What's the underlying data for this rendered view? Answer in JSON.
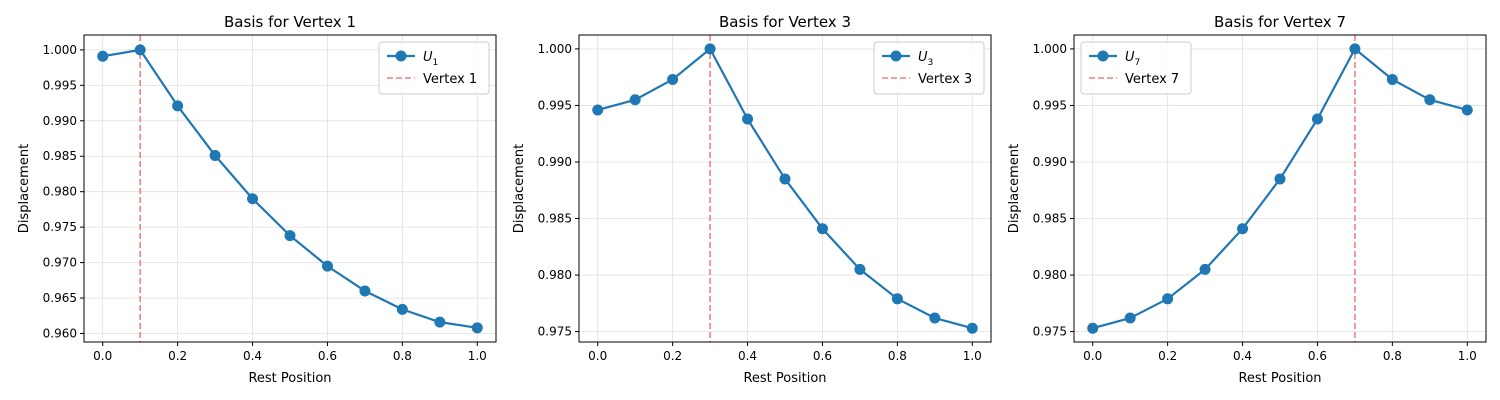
{
  "colors": {
    "line": "#1f77b4",
    "vline": "#f08080",
    "grid": "#e0e0e0",
    "spine": "#000000"
  },
  "chart_data": [
    {
      "type": "line",
      "title": "Basis for Vertex 1",
      "xlabel": "Rest Position",
      "ylabel": "Displacement",
      "x": [
        0.0,
        0.1,
        0.2,
        0.3,
        0.4,
        0.5,
        0.6,
        0.7,
        0.8,
        0.9,
        1.0
      ],
      "series": [
        {
          "name": "U",
          "subscript": "1",
          "values": [
            0.9991,
            1.0,
            0.9921,
            0.9851,
            0.979,
            0.9738,
            0.9695,
            0.966,
            0.9634,
            0.9616,
            0.9608
          ]
        }
      ],
      "vline": {
        "x": 0.1,
        "label": "Vertex 1"
      },
      "xlim": [
        -0.05,
        1.05
      ],
      "ylim": [
        0.9588,
        1.0021
      ],
      "xticks": [
        0.0,
        0.2,
        0.4,
        0.6,
        0.8,
        1.0
      ],
      "xtick_labels": [
        "0.0",
        "0.2",
        "0.4",
        "0.6",
        "0.8",
        "1.0"
      ],
      "yticks": [
        0.96,
        0.965,
        0.97,
        0.975,
        0.98,
        0.985,
        0.99,
        0.995,
        1.0
      ],
      "ytick_labels": [
        "0.960",
        "0.965",
        "0.970",
        "0.975",
        "0.980",
        "0.985",
        "0.990",
        "0.995",
        "1.000"
      ],
      "grid": true,
      "legend": "top-right"
    },
    {
      "type": "line",
      "title": "Basis for Vertex 3",
      "xlabel": "Rest Position",
      "ylabel": "Displacement",
      "x": [
        0.0,
        0.1,
        0.2,
        0.3,
        0.4,
        0.5,
        0.6,
        0.7,
        0.8,
        0.9,
        1.0
      ],
      "series": [
        {
          "name": "U",
          "subscript": "3",
          "values": [
            0.9946,
            0.9955,
            0.9973,
            1.0,
            0.9938,
            0.9885,
            0.9841,
            0.9805,
            0.9779,
            0.9762,
            0.9753
          ]
        }
      ],
      "vline": {
        "x": 0.3,
        "label": "Vertex 3"
      },
      "xlim": [
        -0.05,
        1.05
      ],
      "ylim": [
        0.97408,
        1.00123
      ],
      "xticks": [
        0.0,
        0.2,
        0.4,
        0.6,
        0.8,
        1.0
      ],
      "xtick_labels": [
        "0.0",
        "0.2",
        "0.4",
        "0.6",
        "0.8",
        "1.0"
      ],
      "yticks": [
        0.975,
        0.98,
        0.985,
        0.99,
        0.995,
        1.0
      ],
      "ytick_labels": [
        "0.975",
        "0.980",
        "0.985",
        "0.990",
        "0.995",
        "1.000"
      ],
      "grid": true,
      "legend": "top-right"
    },
    {
      "type": "line",
      "title": "Basis for Vertex 7",
      "xlabel": "Rest Position",
      "ylabel": "Displacement",
      "x": [
        0.0,
        0.1,
        0.2,
        0.3,
        0.4,
        0.5,
        0.6,
        0.7,
        0.8,
        0.9,
        1.0
      ],
      "series": [
        {
          "name": "U",
          "subscript": "7",
          "values": [
            0.9753,
            0.9762,
            0.9779,
            0.9805,
            0.9841,
            0.9885,
            0.9938,
            1.0,
            0.9973,
            0.9955,
            0.9946
          ]
        }
      ],
      "vline": {
        "x": 0.7,
        "label": "Vertex 7"
      },
      "xlim": [
        -0.05,
        1.05
      ],
      "ylim": [
        0.97408,
        1.00123
      ],
      "xticks": [
        0.0,
        0.2,
        0.4,
        0.6,
        0.8,
        1.0
      ],
      "xtick_labels": [
        "0.0",
        "0.2",
        "0.4",
        "0.6",
        "0.8",
        "1.0"
      ],
      "yticks": [
        0.975,
        0.98,
        0.985,
        0.99,
        0.995,
        1.0
      ],
      "ytick_labels": [
        "0.975",
        "0.980",
        "0.985",
        "0.990",
        "0.995",
        "1.000"
      ],
      "grid": true,
      "legend": "top-left"
    }
  ]
}
